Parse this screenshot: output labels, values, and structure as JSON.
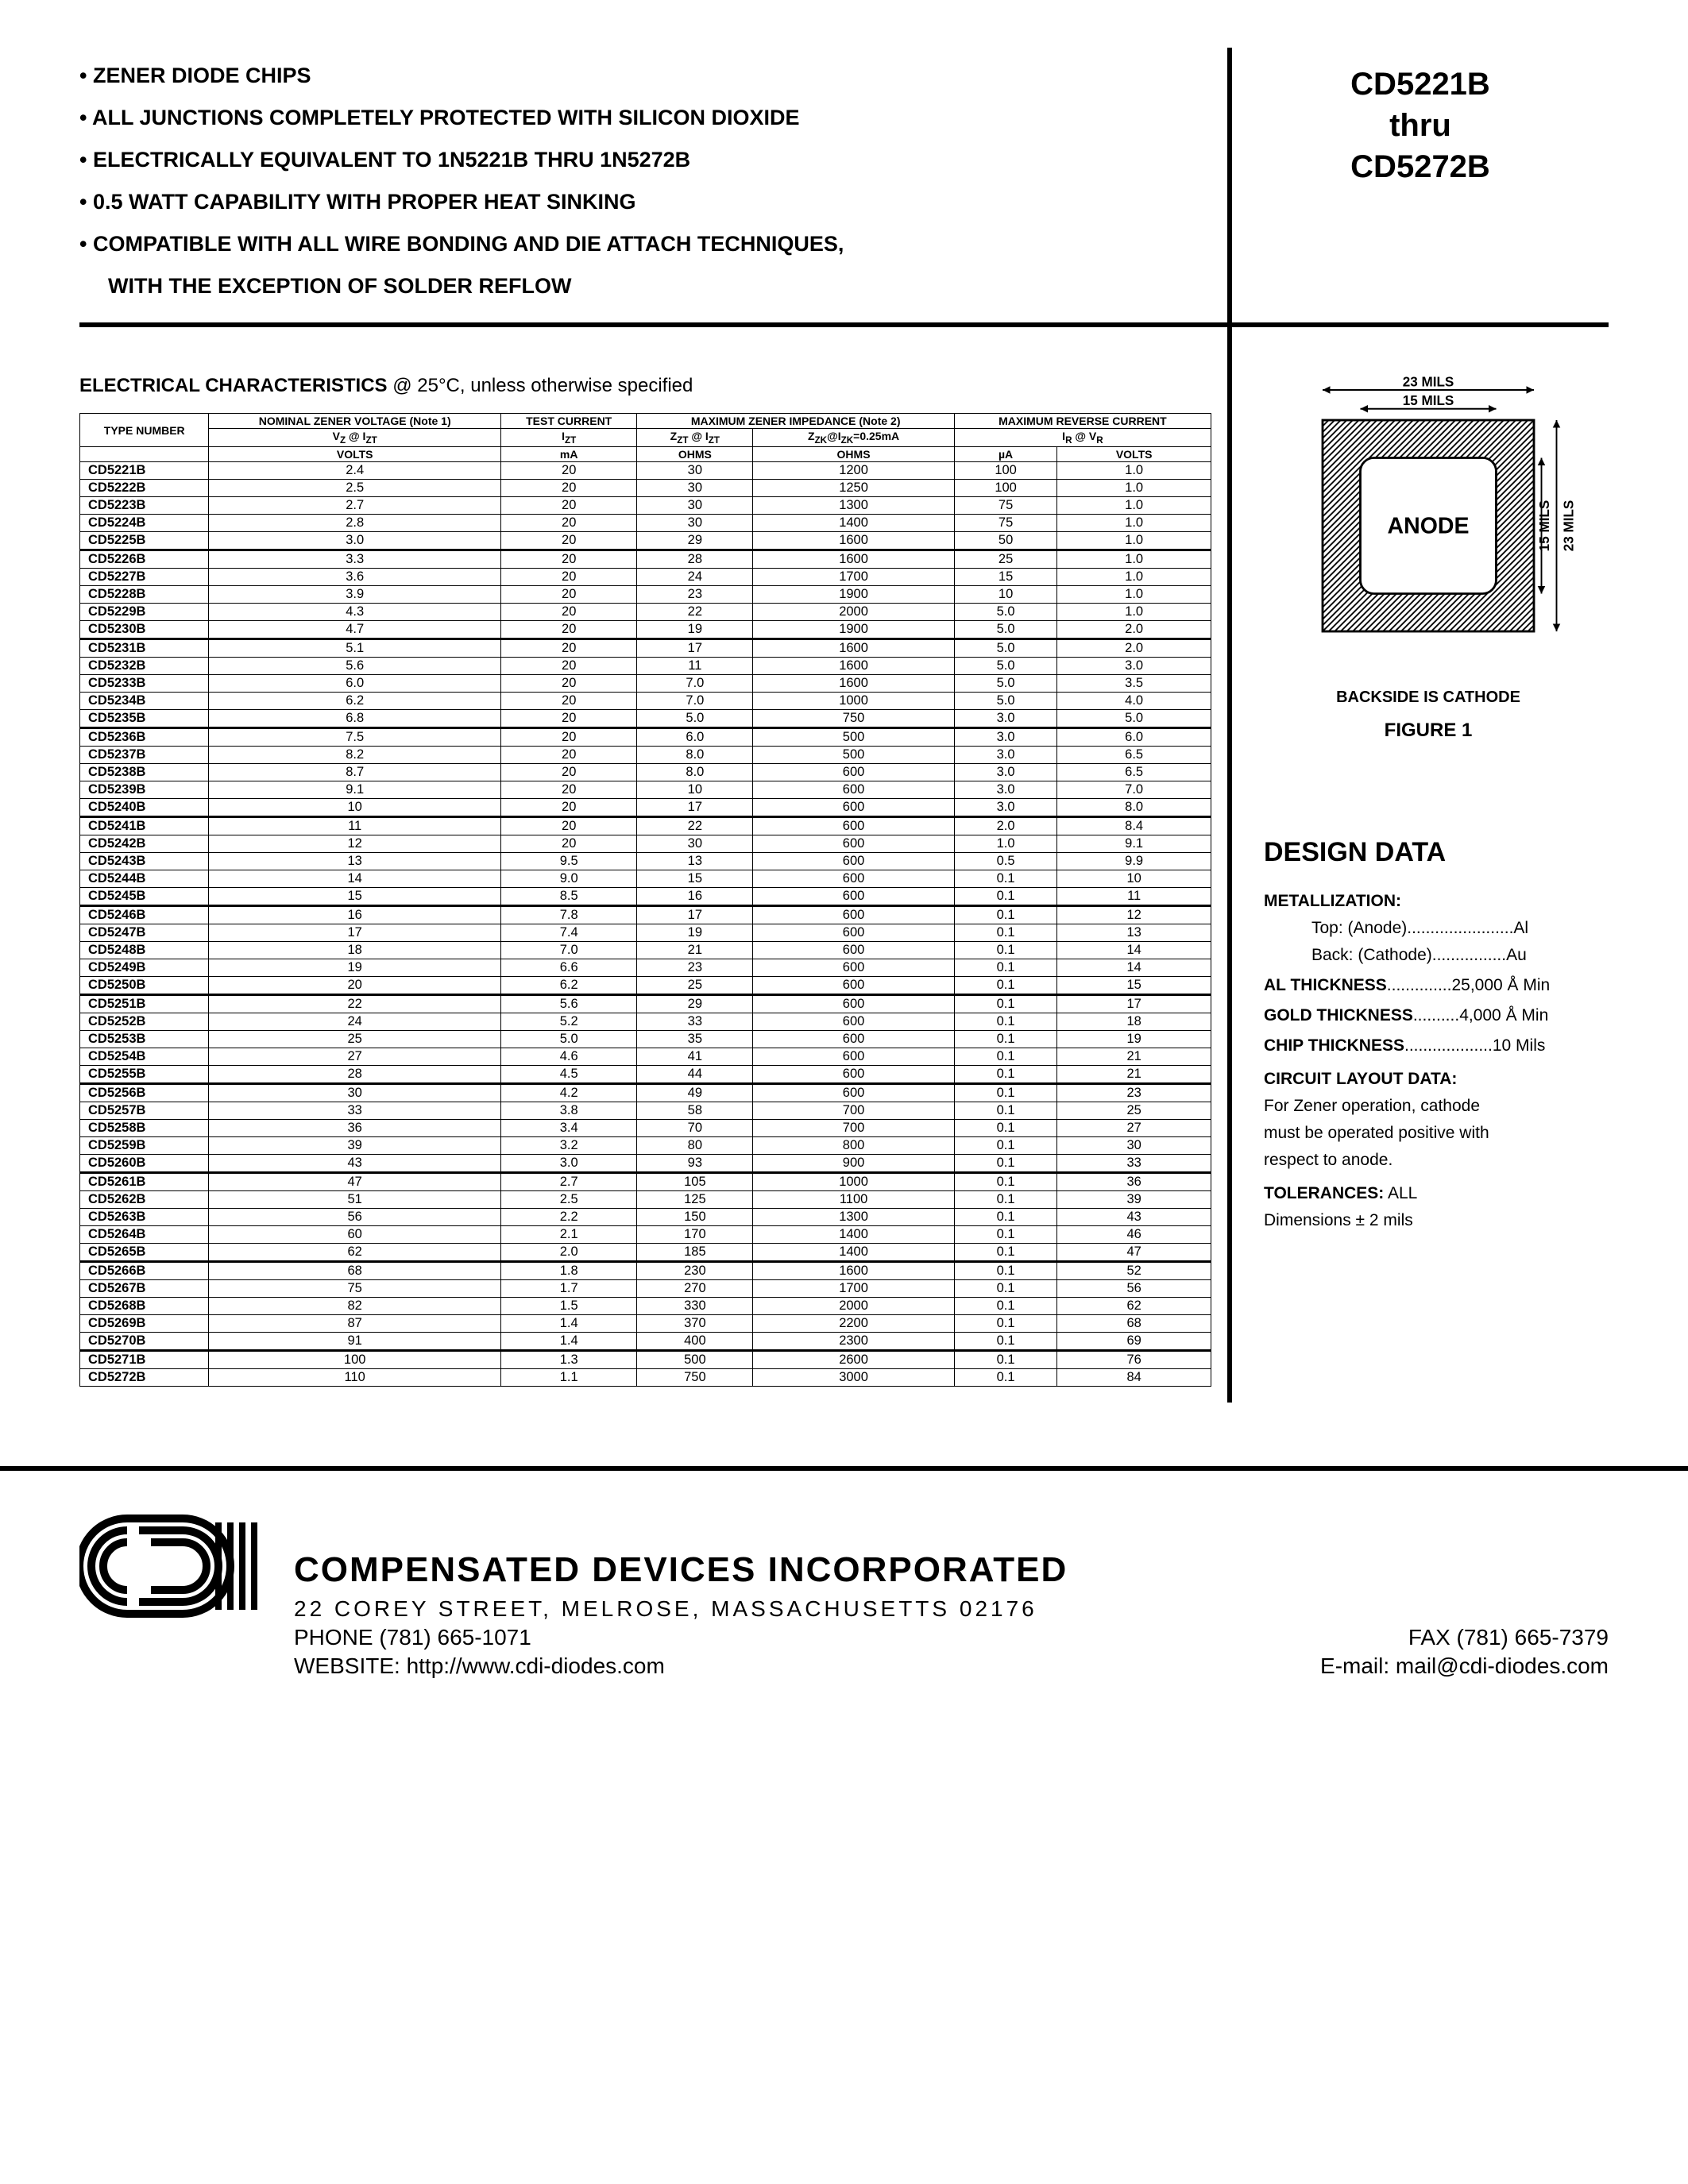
{
  "features": [
    "ZENER DIODE CHIPS",
    "ALL JUNCTIONS COMPLETELY PROTECTED WITH SILICON DIOXIDE",
    "ELECTRICALLY EQUIVALENT TO 1N5221B THRU 1N5272B",
    "0.5 WATT CAPABILITY WITH PROPER HEAT SINKING",
    "COMPATIBLE WITH ALL WIRE BONDING AND DIE ATTACH TECHNIQUES,"
  ],
  "features_tail": "WITH THE EXCEPTION OF SOLDER REFLOW",
  "part_range": {
    "from": "CD5221B",
    "mid": "thru",
    "to": "CD5272B"
  },
  "ec_title_bold": "ELECTRICAL CHARACTERISTICS",
  "ec_title_rest": " @ 25°C, unless otherwise specified",
  "table": {
    "headers": {
      "type": "TYPE NUMBER",
      "nom": "NOMINAL ZENER VOLTAGE (Note 1)",
      "test": "TEST CURRENT",
      "maximp": "MAXIMUM ZENER IMPEDANCE (Note 2)",
      "maxrev": "MAXIMUM REVERSE CURRENT",
      "sub": {
        "vz": "V₂ @ I₂T",
        "izt": "I₂T",
        "zzt": "Z₂T @ I₂T",
        "zzk": "Z₂K@I₂K=0.25mA",
        "ir": "IR @ VR"
      },
      "units": [
        "VOLTS",
        "mA",
        "OHMS",
        "OHMS",
        "µA",
        "VOLTS"
      ]
    },
    "rows": [
      [
        "CD5221B",
        "2.4",
        "20",
        "30",
        "1200",
        "100",
        "1.0"
      ],
      [
        "CD5222B",
        "2.5",
        "20",
        "30",
        "1250",
        "100",
        "1.0"
      ],
      [
        "CD5223B",
        "2.7",
        "20",
        "30",
        "1300",
        "75",
        "1.0"
      ],
      [
        "CD5224B",
        "2.8",
        "20",
        "30",
        "1400",
        "75",
        "1.0"
      ],
      [
        "CD5225B",
        "3.0",
        "20",
        "29",
        "1600",
        "50",
        "1.0"
      ],
      [
        "CD5226B",
        "3.3",
        "20",
        "28",
        "1600",
        "25",
        "1.0"
      ],
      [
        "CD5227B",
        "3.6",
        "20",
        "24",
        "1700",
        "15",
        "1.0"
      ],
      [
        "CD5228B",
        "3.9",
        "20",
        "23",
        "1900",
        "10",
        "1.0"
      ],
      [
        "CD5229B",
        "4.3",
        "20",
        "22",
        "2000",
        "5.0",
        "1.0"
      ],
      [
        "CD5230B",
        "4.7",
        "20",
        "19",
        "1900",
        "5.0",
        "2.0"
      ],
      [
        "CD5231B",
        "5.1",
        "20",
        "17",
        "1600",
        "5.0",
        "2.0"
      ],
      [
        "CD5232B",
        "5.6",
        "20",
        "11",
        "1600",
        "5.0",
        "3.0"
      ],
      [
        "CD5233B",
        "6.0",
        "20",
        "7.0",
        "1600",
        "5.0",
        "3.5"
      ],
      [
        "CD5234B",
        "6.2",
        "20",
        "7.0",
        "1000",
        "5.0",
        "4.0"
      ],
      [
        "CD5235B",
        "6.8",
        "20",
        "5.0",
        "750",
        "3.0",
        "5.0"
      ],
      [
        "CD5236B",
        "7.5",
        "20",
        "6.0",
        "500",
        "3.0",
        "6.0"
      ],
      [
        "CD5237B",
        "8.2",
        "20",
        "8.0",
        "500",
        "3.0",
        "6.5"
      ],
      [
        "CD5238B",
        "8.7",
        "20",
        "8.0",
        "600",
        "3.0",
        "6.5"
      ],
      [
        "CD5239B",
        "9.1",
        "20",
        "10",
        "600",
        "3.0",
        "7.0"
      ],
      [
        "CD5240B",
        "10",
        "20",
        "17",
        "600",
        "3.0",
        "8.0"
      ],
      [
        "CD5241B",
        "11",
        "20",
        "22",
        "600",
        "2.0",
        "8.4"
      ],
      [
        "CD5242B",
        "12",
        "20",
        "30",
        "600",
        "1.0",
        "9.1"
      ],
      [
        "CD5243B",
        "13",
        "9.5",
        "13",
        "600",
        "0.5",
        "9.9"
      ],
      [
        "CD5244B",
        "14",
        "9.0",
        "15",
        "600",
        "0.1",
        "10"
      ],
      [
        "CD5245B",
        "15",
        "8.5",
        "16",
        "600",
        "0.1",
        "11"
      ],
      [
        "CD5246B",
        "16",
        "7.8",
        "17",
        "600",
        "0.1",
        "12"
      ],
      [
        "CD5247B",
        "17",
        "7.4",
        "19",
        "600",
        "0.1",
        "13"
      ],
      [
        "CD5248B",
        "18",
        "7.0",
        "21",
        "600",
        "0.1",
        "14"
      ],
      [
        "CD5249B",
        "19",
        "6.6",
        "23",
        "600",
        "0.1",
        "14"
      ],
      [
        "CD5250B",
        "20",
        "6.2",
        "25",
        "600",
        "0.1",
        "15"
      ],
      [
        "CD5251B",
        "22",
        "5.6",
        "29",
        "600",
        "0.1",
        "17"
      ],
      [
        "CD5252B",
        "24",
        "5.2",
        "33",
        "600",
        "0.1",
        "18"
      ],
      [
        "CD5253B",
        "25",
        "5.0",
        "35",
        "600",
        "0.1",
        "19"
      ],
      [
        "CD5254B",
        "27",
        "4.6",
        "41",
        "600",
        "0.1",
        "21"
      ],
      [
        "CD5255B",
        "28",
        "4.5",
        "44",
        "600",
        "0.1",
        "21"
      ],
      [
        "CD5256B",
        "30",
        "4.2",
        "49",
        "600",
        "0.1",
        "23"
      ],
      [
        "CD5257B",
        "33",
        "3.8",
        "58",
        "700",
        "0.1",
        "25"
      ],
      [
        "CD5258B",
        "36",
        "3.4",
        "70",
        "700",
        "0.1",
        "27"
      ],
      [
        "CD5259B",
        "39",
        "3.2",
        "80",
        "800",
        "0.1",
        "30"
      ],
      [
        "CD5260B",
        "43",
        "3.0",
        "93",
        "900",
        "0.1",
        "33"
      ],
      [
        "CD5261B",
        "47",
        "2.7",
        "105",
        "1000",
        "0.1",
        "36"
      ],
      [
        "CD5262B",
        "51",
        "2.5",
        "125",
        "1100",
        "0.1",
        "39"
      ],
      [
        "CD5263B",
        "56",
        "2.2",
        "150",
        "1300",
        "0.1",
        "43"
      ],
      [
        "CD5264B",
        "60",
        "2.1",
        "170",
        "1400",
        "0.1",
        "46"
      ],
      [
        "CD5265B",
        "62",
        "2.0",
        "185",
        "1400",
        "0.1",
        "47"
      ],
      [
        "CD5266B",
        "68",
        "1.8",
        "230",
        "1600",
        "0.1",
        "52"
      ],
      [
        "CD5267B",
        "75",
        "1.7",
        "270",
        "1700",
        "0.1",
        "56"
      ],
      [
        "CD5268B",
        "82",
        "1.5",
        "330",
        "2000",
        "0.1",
        "62"
      ],
      [
        "CD5269B",
        "87",
        "1.4",
        "370",
        "2200",
        "0.1",
        "68"
      ],
      [
        "CD5270B",
        "91",
        "1.4",
        "400",
        "2300",
        "0.1",
        "69"
      ],
      [
        "CD5271B",
        "100",
        "1.3",
        "500",
        "2600",
        "0.1",
        "76"
      ],
      [
        "CD5272B",
        "110",
        "1.1",
        "750",
        "3000",
        "0.1",
        "84"
      ]
    ],
    "group_breaks": [
      5,
      10,
      15,
      20,
      25,
      30,
      35,
      40,
      45,
      50
    ]
  },
  "figure": {
    "dim_outer": "23 MILS",
    "dim_inner": "15 MILS",
    "anode": "ANODE",
    "backside": "BACKSIDE IS CATHODE",
    "title": "FIGURE 1"
  },
  "design": {
    "title": "DESIGN DATA",
    "metallization_label": "METALLIZATION:",
    "met_top": "Top: (Anode).......................Al",
    "met_back": "Back: (Cathode)................Au",
    "al": "AL THICKNESS..............25,000 Å Min",
    "gold": "GOLD THICKNESS..........4,000 Å Min",
    "chip": "CHIP THICKNESS...................10 Mils",
    "circuit_label": "CIRCUIT LAYOUT DATA:",
    "circuit_text1": "For Zener operation, cathode",
    "circuit_text2": "must be operated positive with",
    "circuit_text3": "respect to anode.",
    "tol_label": "TOLERANCES:",
    "tol_text1": " ALL",
    "tol_text2": "Dimensions ± 2 mils"
  },
  "footer": {
    "company": "COMPENSATED DEVICES INCORPORATED",
    "address": "22 COREY STREET, MELROSE, MASSACHUSETTS 02176",
    "phone": "PHONE (781) 665-1071",
    "fax": "FAX (781) 665-7379",
    "website": "WEBSITE:  http://www.cdi-diodes.com",
    "email": "E-mail: mail@cdi-diodes.com"
  }
}
